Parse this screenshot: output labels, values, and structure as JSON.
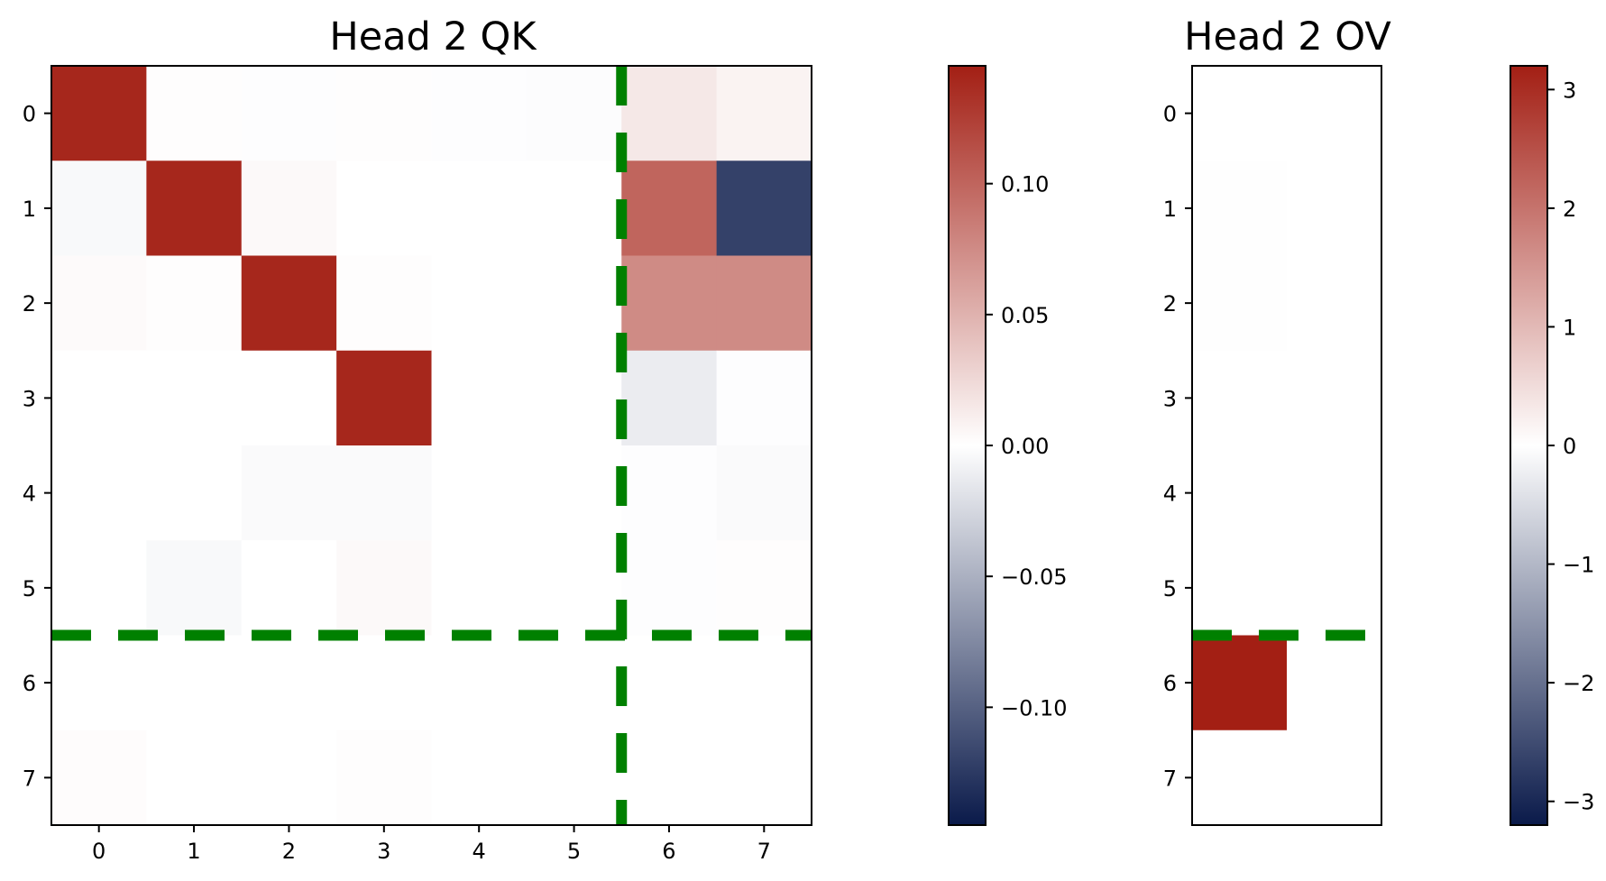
{
  "chart_data": [
    {
      "type": "heatmap",
      "title": "Head 2 QK",
      "xlabel": "",
      "ylabel": "",
      "x_ticks": [
        "0",
        "1",
        "2",
        "3",
        "4",
        "5",
        "6",
        "7"
      ],
      "y_ticks": [
        "0",
        "1",
        "2",
        "3",
        "4",
        "5",
        "6",
        "7"
      ],
      "values": [
        [
          0.14,
          0.001,
          -0.001,
          0.001,
          -0.001,
          -0.002,
          0.015,
          0.008
        ],
        [
          -0.004,
          0.14,
          0.004,
          0.0,
          0.0,
          0.0,
          0.1,
          -0.12
        ],
        [
          0.003,
          0.001,
          0.14,
          0.001,
          0.0,
          0.0,
          0.075,
          0.075
        ],
        [
          0.0,
          0.0,
          0.0,
          0.14,
          0.0,
          0.0,
          -0.012,
          -0.001
        ],
        [
          0.0,
          0.0,
          -0.003,
          -0.003,
          0.0,
          0.0,
          -0.001,
          -0.003
        ],
        [
          0.0,
          -0.004,
          0.0,
          0.004,
          0.0,
          0.0,
          -0.001,
          0.001
        ],
        [
          0.0,
          0.0,
          0.0,
          0.0,
          0.0,
          0.0,
          0.0,
          0.0
        ],
        [
          0.002,
          0.0,
          0.0,
          0.001,
          0.0,
          0.0,
          0.0,
          0.0
        ]
      ],
      "colormap": {
        "negative": "#0a1a4a",
        "zero": "#ffffff",
        "positive": "#a31f14"
      },
      "vmin": -0.145,
      "vmax": 0.145,
      "colorbar_ticks": [
        0.1,
        0.05,
        0.0,
        -0.05,
        -0.1
      ],
      "colorbar_tick_labels": [
        "0.10",
        "0.05",
        "0.00",
        "−0.05",
        "−0.10"
      ],
      "dividers": [
        {
          "orientation": "horizontal",
          "between_rows": [
            5,
            6
          ]
        },
        {
          "orientation": "vertical",
          "between_cols": [
            5,
            6
          ]
        }
      ],
      "divider_color": "#008000",
      "divider_style": "dashed"
    },
    {
      "type": "heatmap",
      "title": "Head 2 OV",
      "xlabel": "",
      "ylabel": "",
      "x_ticks": [],
      "y_ticks": [
        "0",
        "1",
        "2",
        "3",
        "4",
        "5",
        "6",
        "7"
      ],
      "values": [
        [
          0.0,
          0.0
        ],
        [
          0.02,
          0.0
        ],
        [
          0.02,
          0.0
        ],
        [
          0.0,
          0.0
        ],
        [
          0.0,
          0.0
        ],
        [
          0.0,
          0.0
        ],
        [
          3.2,
          0.0
        ],
        [
          0.0,
          0.0
        ]
      ],
      "colormap": {
        "negative": "#0a1a4a",
        "zero": "#ffffff",
        "positive": "#a31f14"
      },
      "vmin": -3.2,
      "vmax": 3.2,
      "colorbar_ticks": [
        3,
        2,
        1,
        0,
        -1,
        -2,
        -3
      ],
      "colorbar_tick_labels": [
        "3",
        "2",
        "1",
        "0",
        "−1",
        "−2",
        "−3"
      ],
      "dividers": [
        {
          "orientation": "horizontal",
          "between_rows": [
            5,
            6
          ]
        }
      ],
      "divider_color": "#008000",
      "divider_style": "dashed"
    }
  ]
}
